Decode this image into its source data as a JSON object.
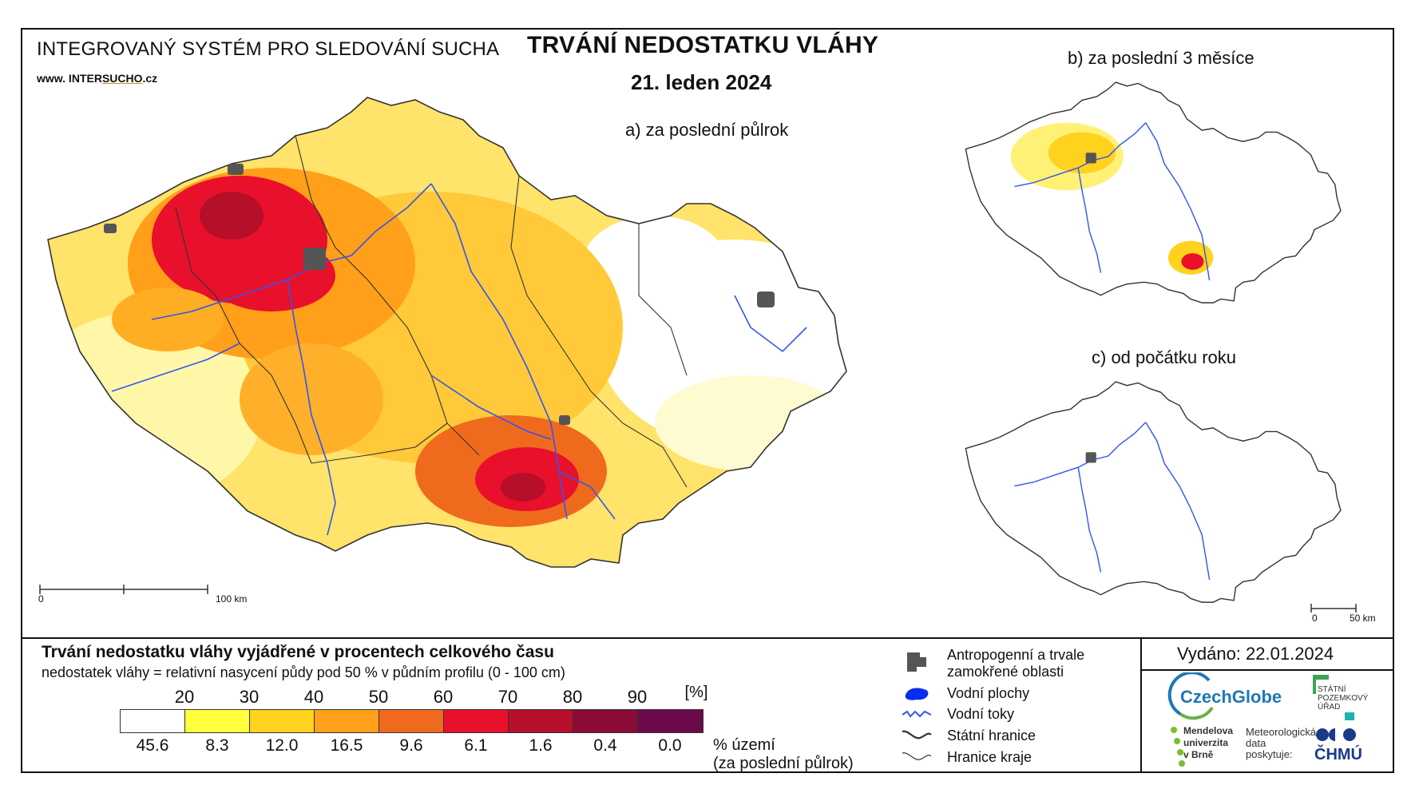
{
  "header": {
    "system_name": "INTEGROVANÝ SYSTÉM PRO SLEDOVÁNÍ SUCHA",
    "website_prefix": "www. INTER",
    "website_mid": "SUCHO",
    "website_suffix": ".cz",
    "title": "TRVÁNÍ NEDOSTATKU VLÁHY",
    "date": "21. leden 2024"
  },
  "maps": {
    "a_label": "a) za poslední půlrok",
    "b_label": "b) za poslední 3 měsíce",
    "c_label": "c) od počátku roku",
    "scale_main": {
      "start": "0",
      "end": "100 km"
    },
    "scale_small": {
      "start": "0",
      "end": "50 km"
    }
  },
  "legend": {
    "title": "Trvání nedostatku vláhy vyjádřené v procentech celkového času",
    "description": "nedostatek vláhy = relativní nasycení půdy pod 50 % v půdním profilu (0 - 100 cm)",
    "thresholds": [
      "20",
      "30",
      "40",
      "50",
      "60",
      "70",
      "80",
      "90"
    ],
    "unit": "[%]",
    "colors": [
      "#ffffff",
      "#ffff3c",
      "#ffd21e",
      "#ff9f1a",
      "#f06a1e",
      "#e8102a",
      "#b50f2a",
      "#8c0b36",
      "#6a0a4a"
    ],
    "area_values": [
      "45.6",
      "8.3",
      "12.0",
      "16.5",
      "9.6",
      "6.1",
      "1.6",
      "0.4",
      "0.0"
    ],
    "area_label_1": "% území",
    "area_label_2": "(za poslední půlrok)",
    "symbols": [
      {
        "icon": "urban-area-icon",
        "label_1": "Antropogenní a trvale",
        "label_2": "zamokřené oblasti"
      },
      {
        "icon": "water-body-icon",
        "label_1": "Vodní plochy"
      },
      {
        "icon": "river-icon",
        "label_1": "Vodní toky"
      },
      {
        "icon": "state-border-icon",
        "label_1": "Státní hranice"
      },
      {
        "icon": "region-border-icon",
        "label_1": "Hranice kraje"
      }
    ]
  },
  "issued": "Vydáno: 22.01.2024",
  "logos": {
    "czechglobe": "CzechGlobe",
    "spu_1": "STÁTNÍ",
    "spu_2": "POZEMKOVÝ",
    "spu_3": "ÚŘAD",
    "mendel_1": "Mendelova",
    "mendel_2": "univerzita",
    "mendel_3": "v Brně",
    "meteo_1": "Meteorologická",
    "meteo_2": "data",
    "meteo_3": "poskytuje:",
    "chmu": "ČHMÚ"
  }
}
